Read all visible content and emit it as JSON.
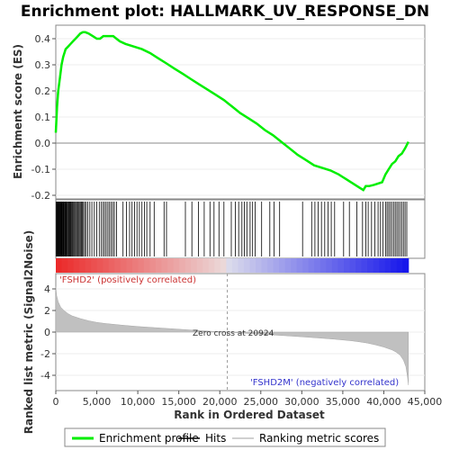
{
  "chart_data": {
    "type": "line",
    "title": "Enrichment plot: HALLMARK_UV_RESPONSE_DN",
    "top_panel": {
      "ylabel": "Enrichment score (ES)",
      "ylim": [
        -0.2,
        0.45
      ],
      "yticks": [
        -0.2,
        -0.1,
        0.0,
        0.1,
        0.2,
        0.3,
        0.4
      ],
      "ytick_labels": [
        "-0.2",
        "-0.1",
        "0.0",
        "0.1",
        "0.2",
        "0.3",
        "0.4"
      ],
      "series": [
        {
          "name": "Enrichment profile",
          "color": "#00ee00",
          "x": [
            0,
            150,
            300,
            500,
            700,
            900,
            1200,
            1500,
            1800,
            2100,
            2400,
            2700,
            3000,
            3300,
            3600,
            4000,
            4500,
            5000,
            5400,
            5800,
            6200,
            6600,
            7000,
            7400,
            7800,
            8500,
            9500,
            10500,
            11500,
            12500,
            13500,
            14500,
            15500,
            16500,
            17500,
            18500,
            19500,
            20500,
            21500,
            22500,
            23500,
            24500,
            25500,
            26500,
            27500,
            28500,
            29500,
            30500,
            31500,
            32500,
            33500,
            34500,
            35500,
            36500,
            37000,
            37500,
            37800,
            38200,
            38800,
            39300,
            39800,
            40200,
            40600,
            41000,
            41400,
            41800,
            42200,
            42600,
            43000
          ],
          "y": [
            0.04,
            0.14,
            0.2,
            0.25,
            0.3,
            0.33,
            0.36,
            0.37,
            0.38,
            0.39,
            0.4,
            0.41,
            0.42,
            0.425,
            0.425,
            0.42,
            0.41,
            0.4,
            0.4,
            0.41,
            0.41,
            0.41,
            0.41,
            0.4,
            0.39,
            0.38,
            0.37,
            0.36,
            0.345,
            0.325,
            0.305,
            0.285,
            0.265,
            0.245,
            0.225,
            0.205,
            0.185,
            0.165,
            0.14,
            0.115,
            0.095,
            0.075,
            0.05,
            0.03,
            0.005,
            -0.02,
            -0.045,
            -0.065,
            -0.085,
            -0.095,
            -0.105,
            -0.12,
            -0.14,
            -0.16,
            -0.17,
            -0.18,
            -0.165,
            -0.165,
            -0.16,
            -0.155,
            -0.15,
            -0.12,
            -0.1,
            -0.08,
            -0.07,
            -0.05,
            -0.04,
            -0.02,
            0.005
          ]
        }
      ]
    },
    "hits": {
      "name": "Hits",
      "positions": [
        60,
        140,
        210,
        290,
        360,
        430,
        500,
        560,
        620,
        690,
        760,
        830,
        900,
        980,
        1060,
        1140,
        1220,
        1300,
        1390,
        1480,
        1570,
        1660,
        1760,
        1860,
        1960,
        2060,
        2170,
        2280,
        2400,
        2520,
        2640,
        2760,
        2880,
        3000,
        3120,
        3250,
        3380,
        3520,
        3700,
        3900,
        4150,
        4400,
        4700,
        5000,
        5300,
        5550,
        5750,
        5950,
        6150,
        6350,
        6550,
        6750,
        6950,
        7150,
        7400,
        8200,
        8600,
        9000,
        9300,
        9600,
        9900,
        10200,
        10500,
        10800,
        11100,
        11500,
        12000,
        13200,
        13500,
        15800,
        16600,
        17400,
        18100,
        18800,
        19300,
        19900,
        20500,
        21400,
        21900,
        22300,
        22700,
        23000,
        23300,
        23700,
        24000,
        24300,
        25100,
        26100,
        26600,
        27300,
        30100,
        31200,
        31600,
        32000,
        32400,
        32800,
        33200,
        33600,
        34000,
        35100,
        35800,
        36700,
        37400,
        37800,
        38100,
        38500,
        38900,
        39300,
        39600,
        39900,
        40200,
        40400,
        40600,
        40800,
        41000,
        41200,
        41400,
        41600,
        41800,
        42000,
        42200,
        42400,
        42600,
        42800
      ]
    },
    "bottom_panel": {
      "name": "Ranking metric scores",
      "ylabel": "Ranked list metric (Signal2Noise)",
      "ylim": [
        -5,
        5
      ],
      "yticks": [
        -4,
        -2,
        0,
        2,
        4
      ],
      "ytick_labels": [
        "-4",
        "-2",
        "0",
        "2",
        "4"
      ],
      "x": [
        0,
        100,
        300,
        600,
        1000,
        1500,
        2000,
        3000,
        4000,
        5000,
        6000,
        8000,
        10000,
        12000,
        14000,
        16000,
        18000,
        20000,
        20924,
        22000,
        24000,
        26000,
        28000,
        30000,
        32000,
        34000,
        36000,
        37000,
        38000,
        39000,
        40000,
        41000,
        41500,
        42000,
        42400,
        42700,
        42900,
        43000
      ],
      "values": [
        4.2,
        3.4,
        2.8,
        2.3,
        2.0,
        1.7,
        1.5,
        1.25,
        1.05,
        0.9,
        0.8,
        0.65,
        0.52,
        0.42,
        0.32,
        0.22,
        0.12,
        0.03,
        0.0,
        -0.06,
        -0.15,
        -0.24,
        -0.33,
        -0.43,
        -0.54,
        -0.66,
        -0.8,
        -0.9,
        -1.02,
        -1.18,
        -1.38,
        -1.65,
        -1.85,
        -2.15,
        -2.6,
        -3.2,
        -4.2,
        -4.9
      ],
      "zero_cross_label": "Zero cross at 20924",
      "zero_cross": 20924,
      "pos_label": "'FSHD2' (positively correlated)",
      "neg_label": "'FSHD2M' (negatively correlated)"
    },
    "xlabel": "Rank in Ordered Dataset",
    "xlim": [
      0,
      45000
    ],
    "xticks": [
      0,
      5000,
      10000,
      15000,
      20000,
      25000,
      30000,
      35000,
      40000,
      45000
    ],
    "xtick_labels": [
      "0",
      "5,000",
      "10,000",
      "15,000",
      "20,000",
      "25,000",
      "30,000",
      "35,000",
      "40,000",
      "45,000"
    ],
    "legend": {
      "placement": "bottom",
      "items": [
        {
          "label": "Enrichment profile",
          "color": "#00ee00"
        },
        {
          "label": "Hits",
          "color": "#000000"
        },
        {
          "label": "Ranking metric scores",
          "color": "#c0c0c0"
        }
      ]
    }
  }
}
